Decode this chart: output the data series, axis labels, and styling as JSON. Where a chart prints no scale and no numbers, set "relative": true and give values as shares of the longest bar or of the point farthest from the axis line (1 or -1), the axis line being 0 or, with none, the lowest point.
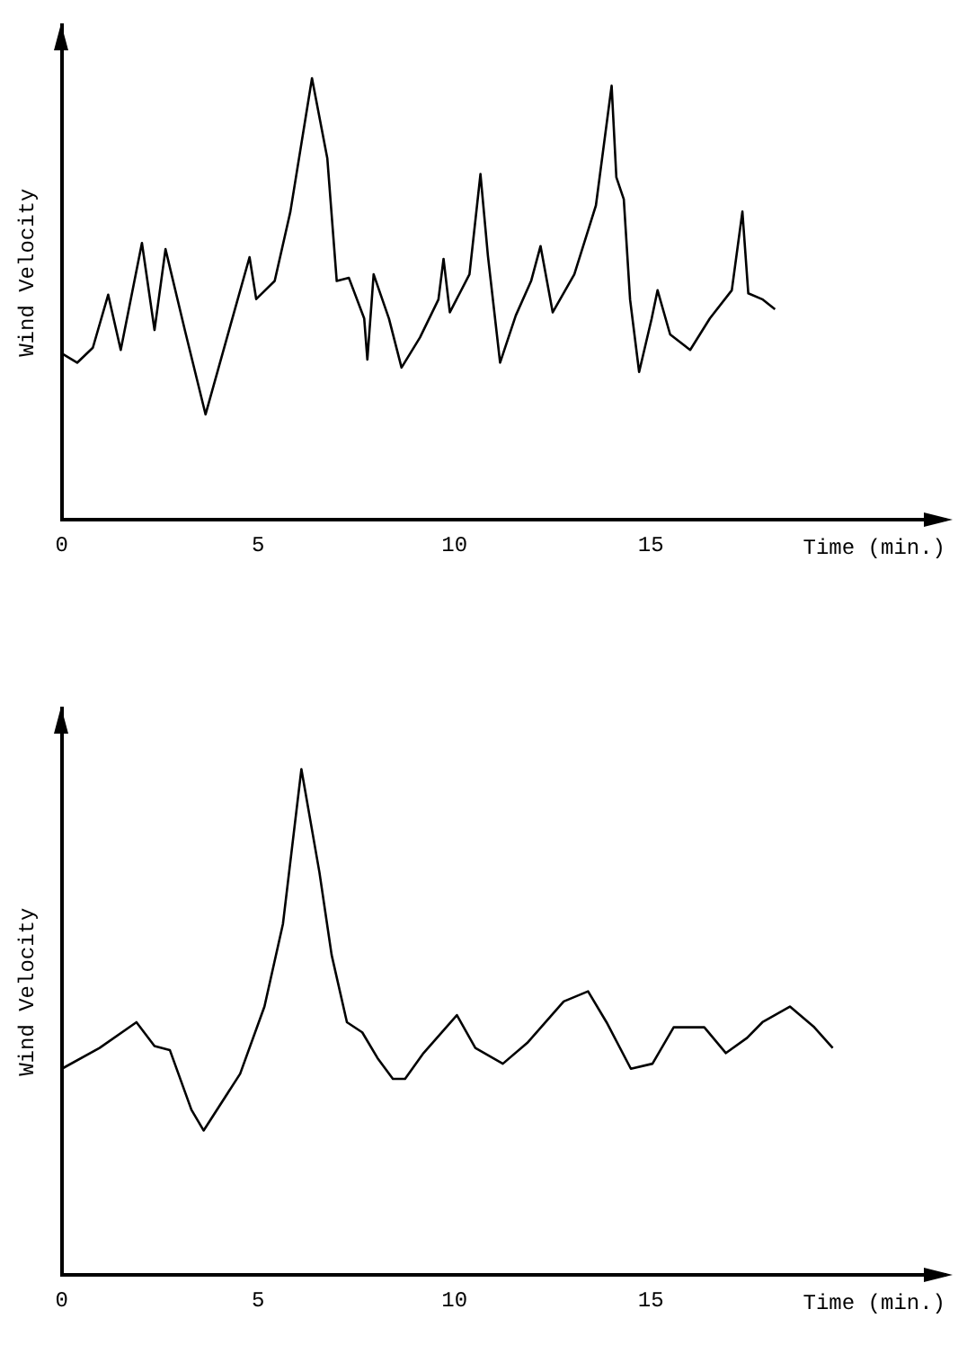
{
  "chart_data": [
    {
      "type": "line",
      "xlabel": "Time (min.)",
      "ylabel": "Wind Velocity",
      "relative": true,
      "xlim": [
        0,
        22.5
      ],
      "xticks": [
        0,
        5,
        10,
        15
      ],
      "x": [
        0,
        0.39,
        0.79,
        1.18,
        1.5,
        2.04,
        2.36,
        2.64,
        3.14,
        3.66,
        4.25,
        4.78,
        4.95,
        5.42,
        5.82,
        6.37,
        6.76,
        7.0,
        7.31,
        7.7,
        7.78,
        7.94,
        8.33,
        8.65,
        9.12,
        9.59,
        9.72,
        9.88,
        10.38,
        10.66,
        10.85,
        11.16,
        11.56,
        11.95,
        12.19,
        12.5,
        13.05,
        13.6,
        14.0,
        14.12,
        14.31,
        14.47,
        14.7,
        15.02,
        15.17,
        15.49,
        16.0,
        16.5,
        17.06,
        17.33,
        17.48,
        17.85,
        18.16
      ],
      "series": [
        {
          "color": "#000000",
          "values": [
            0.377,
            0.356,
            0.39,
            0.51,
            0.385,
            0.627,
            0.43,
            0.613,
            0.427,
            0.239,
            0.427,
            0.595,
            0.5,
            0.541,
            0.698,
            1.0,
            0.819,
            0.541,
            0.548,
            0.456,
            0.363,
            0.556,
            0.456,
            0.345,
            0.413,
            0.499,
            0.591,
            0.47,
            0.556,
            0.783,
            0.598,
            0.356,
            0.463,
            0.541,
            0.62,
            0.47,
            0.556,
            0.712,
            0.983,
            0.776,
            0.726,
            0.499,
            0.335,
            0.456,
            0.52,
            0.42,
            0.385,
            0.456,
            0.52,
            0.698,
            0.513,
            0.499,
            0.477
          ]
        }
      ]
    },
    {
      "type": "line",
      "xlabel": "Time (min.)",
      "ylabel": "Wind Velocity",
      "relative": true,
      "xlim": [
        0,
        22.5
      ],
      "xticks": [
        0,
        5,
        10,
        15
      ],
      "x": [
        0,
        0.96,
        1.9,
        2.36,
        2.75,
        3.3,
        3.61,
        4.54,
        5.16,
        5.63,
        6.1,
        6.56,
        6.87,
        7.26,
        7.65,
        8.04,
        8.43,
        8.74,
        9.21,
        10.06,
        10.53,
        11.23,
        11.85,
        12.78,
        13.4,
        13.87,
        14.49,
        15.04,
        15.58,
        16.05,
        16.36,
        16.91,
        17.45,
        17.84,
        18.54,
        19.16,
        19.63
      ],
      "series": [
        {
          "color": "#000000",
          "values": [
            0.408,
            0.449,
            0.5,
            0.453,
            0.445,
            0.327,
            0.286,
            0.398,
            0.531,
            0.694,
            1.0,
            0.796,
            0.633,
            0.5,
            0.48,
            0.429,
            0.388,
            0.388,
            0.439,
            0.514,
            0.449,
            0.418,
            0.459,
            0.541,
            0.561,
            0.5,
            0.408,
            0.418,
            0.49,
            0.49,
            0.49,
            0.439,
            0.469,
            0.5,
            0.531,
            0.49,
            0.449
          ]
        }
      ]
    }
  ]
}
